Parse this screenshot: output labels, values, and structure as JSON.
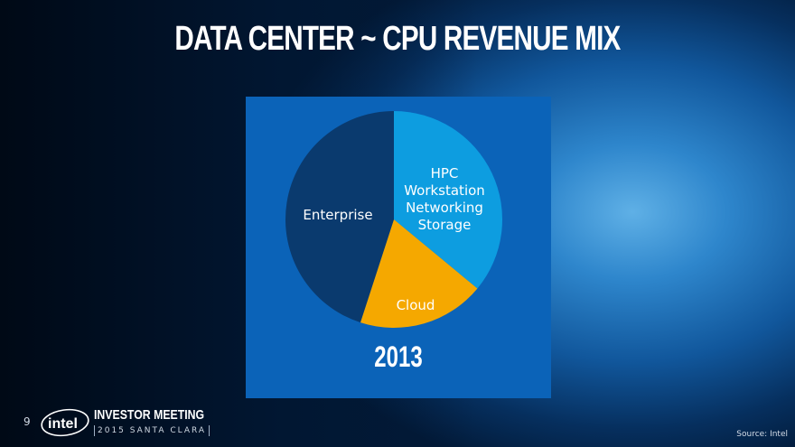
{
  "title": "DATA CENTER ~ CPU REVENUE MIX",
  "chart_data": {
    "type": "pie",
    "title": "DATA CENTER ~ CPU REVENUE MIX",
    "period": "2013",
    "slices": [
      {
        "name": "HPC Workstation Networking Storage",
        "lines": [
          "HPC",
          "Workstation",
          "Networking",
          "Storage"
        ],
        "value": 36,
        "color": "#0d9de0"
      },
      {
        "name": "Cloud",
        "lines": [
          "Cloud"
        ],
        "value": 19,
        "color": "#f5a800"
      },
      {
        "name": "Enterprise",
        "lines": [
          "Enterprise"
        ],
        "value": 45,
        "color": "#0a3a6e"
      }
    ]
  },
  "footer": {
    "page_number": "9",
    "logo_text": "intel",
    "event_title": "INVESTOR MEETING",
    "event_subtitle": "2015 SANTA CLARA",
    "source": "Source: Intel"
  }
}
